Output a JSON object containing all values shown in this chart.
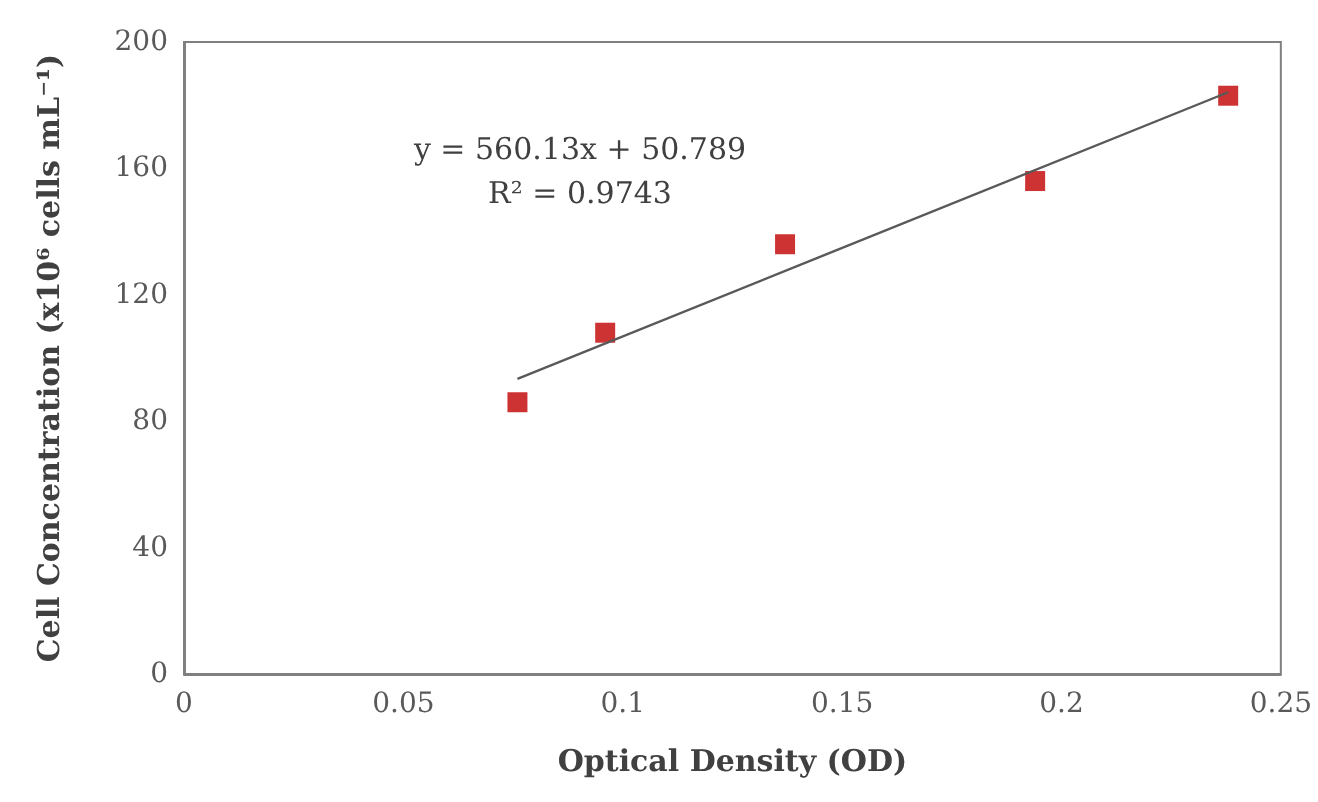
{
  "chart_data": {
    "type": "scatter",
    "xlabel": "Optical Density (OD)",
    "ylabel": "Cell Concentration (x10⁶ cells mL⁻¹)",
    "xlim": [
      0,
      0.25
    ],
    "xticks": [
      0,
      0.05,
      0.1,
      0.15,
      0.2,
      0.25
    ],
    "ylim": [
      0,
      200
    ],
    "yticks": [
      0,
      40,
      80,
      120,
      160,
      200
    ],
    "grid": false,
    "marker": "square",
    "annotations": [
      "y = 560.13x + 50.789",
      "R² = 0.9743"
    ],
    "series": [
      {
        "color": "#c00000",
        "x": [
          0.076,
          0.096,
          0.137,
          0.194,
          0.238
        ],
        "values": [
          86,
          108,
          136,
          156,
          183
        ]
      },
      {
        "type": "line",
        "color": "#595959",
        "marker": "none",
        "line_style": "solid",
        "x": [
          0.076,
          0.238
        ],
        "values": [
          93.4,
          184.1
        ]
      }
    ]
  }
}
